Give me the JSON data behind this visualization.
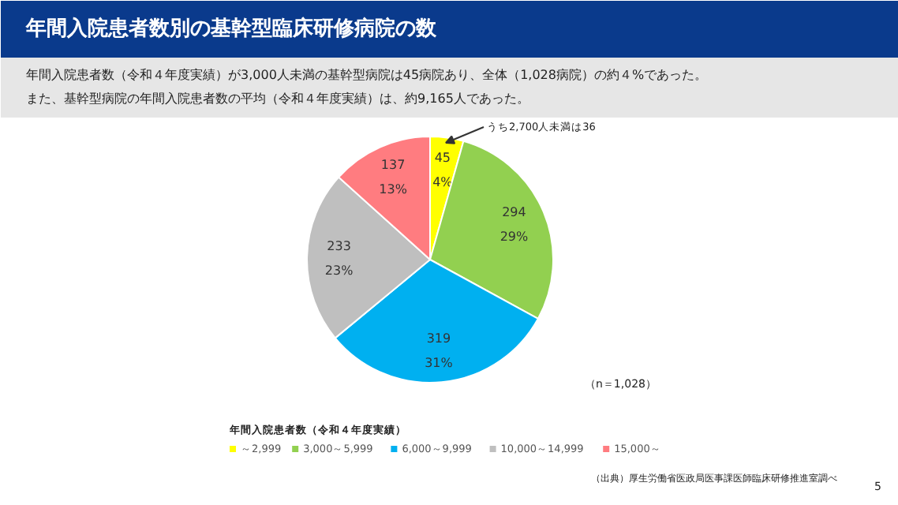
{
  "chart_data": {
    "type": "pie",
    "title": "年間入院患者数別の基幹型臨床研修病院の数",
    "subtitle": "年間入院患者数（令和４年度実績）が3,000人未満の基幹型病院は45病院あり、全体（1,028病院）の約４%であった。",
    "categories": [
      "～2,999",
      "3,000～5,999",
      "6,000～9,999",
      "10,000～14,999",
      "15,000～"
    ],
    "values": [
      45,
      294,
      319,
      233,
      137
    ],
    "colors": [
      "#ffff00",
      "#92d050",
      "#00b0f0",
      "#bfbfbf",
      "#ff7c80"
    ],
    "value_labels": [
      "45\n4%",
      "294\n29%",
      "319\n31%",
      "233\n23%",
      "137\n13%"
    ],
    "legend_title": "年間入院患者数（令和４年度実績）",
    "legend": "bottom",
    "annotations": [
      "また、基幹型病院の年間入院患者数の平均（令和４年度実績）は、約9,165人であった。",
      "うち2,700人未満は36",
      "（n＝1,028）",
      "（出典）厚生労働省医政局医事課医師臨床研修推進室調べ",
      "5"
    ]
  }
}
